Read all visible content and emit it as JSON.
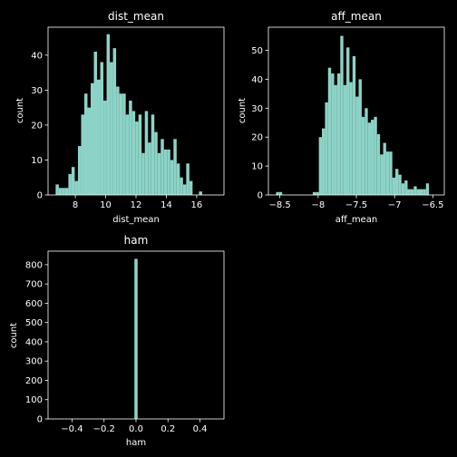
{
  "figure": {
    "background": "#000000",
    "foreground": "#ffffff",
    "bar_color": "#8dd3c7"
  },
  "chart_data": [
    {
      "type": "bar",
      "title": "dist_mean",
      "xlabel": "dist_mean",
      "ylabel": "count",
      "xlim": [
        6.2,
        17.8
      ],
      "ylim": [
        0,
        48
      ],
      "xticks": [
        8,
        10,
        12,
        14,
        16
      ],
      "yticks": [
        0,
        10,
        20,
        30,
        40
      ],
      "grid": false,
      "bin_start": 6.7,
      "bin_width": 0.21,
      "values": [
        3,
        2,
        2,
        2,
        6,
        8,
        4,
        14,
        23,
        29,
        25,
        32,
        41,
        33,
        38,
        27,
        46,
        38,
        42,
        31,
        29,
        29,
        23,
        27,
        24,
        21,
        23,
        12,
        24,
        15,
        23,
        18,
        12,
        16,
        13,
        13,
        10,
        16,
        9,
        5,
        3,
        9,
        4,
        0,
        0,
        1
      ]
    },
    {
      "type": "bar",
      "title": "aff_mean",
      "xlabel": "aff_mean",
      "ylabel": "count",
      "xlim": [
        -8.65,
        -6.35
      ],
      "ylim": [
        0,
        58
      ],
      "xticks": [
        -8.5,
        -8.0,
        -7.5,
        -7.0,
        -6.5
      ],
      "yticks": [
        0,
        10,
        20,
        30,
        40,
        50
      ],
      "grid": false,
      "bin_start": -8.55,
      "bin_width": 0.04,
      "values": [
        1,
        1,
        0,
        0,
        0,
        0,
        0,
        0,
        0,
        0,
        0,
        0,
        1,
        1,
        20,
        23,
        32,
        44,
        42,
        38,
        42,
        55,
        38,
        51,
        39,
        48,
        34,
        40,
        27,
        30,
        25,
        26,
        27,
        21,
        14,
        18,
        15,
        15,
        6,
        9,
        7,
        4,
        5,
        2,
        2,
        3,
        2,
        2,
        2,
        4
      ]
    },
    {
      "type": "bar",
      "title": "ham",
      "xlabel": "ham",
      "ylabel": "count",
      "xlim": [
        -0.55,
        0.55
      ],
      "ylim": [
        0,
        870
      ],
      "xticks": [
        -0.4,
        -0.2,
        0.0,
        0.2,
        0.4
      ],
      "xtick_labels": [
        "−0.4",
        "−0.2",
        "0.0",
        "0.2",
        "0.4"
      ],
      "yticks": [
        0,
        100,
        200,
        300,
        400,
        500,
        600,
        700,
        800
      ],
      "grid": false,
      "bin_start": -0.01,
      "bin_width": 0.02,
      "values": [
        830
      ]
    }
  ]
}
